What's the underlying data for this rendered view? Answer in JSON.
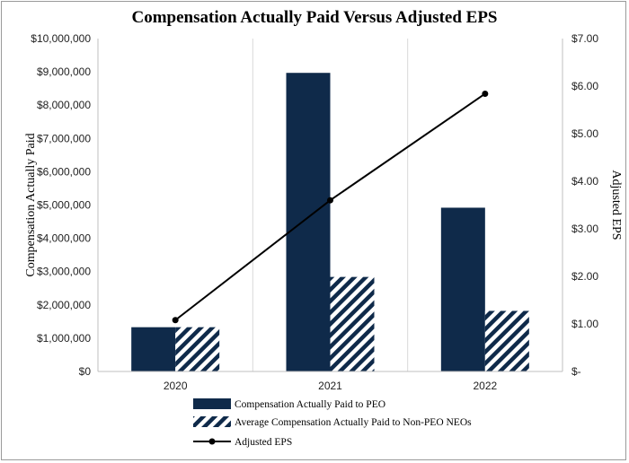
{
  "chart_data": {
    "type": "bar",
    "title": "Compensation Actually Paid Versus Adjusted EPS",
    "categories": [
      "2020",
      "2021",
      "2022"
    ],
    "series": [
      {
        "name": "Compensation Actually Paid to PEO",
        "kind": "bar",
        "style": "solid",
        "color": "#0f2a4a",
        "values": [
          1330000,
          8970000,
          4920000
        ]
      },
      {
        "name": "Average Compensation Actually Paid to Non-PEO NEOs",
        "kind": "bar",
        "style": "hatched",
        "color": "#0f2a4a",
        "values": [
          1330000,
          2840000,
          1820000
        ]
      },
      {
        "name": "Adjusted EPS",
        "kind": "line",
        "axis": "right",
        "color": "#000000",
        "values": [
          1.08,
          3.6,
          5.84
        ]
      }
    ],
    "ylabel": "Compensation Actually Paid",
    "y2label": "Adjusted EPS",
    "ylim": [
      0,
      10000000
    ],
    "y2lim": [
      0,
      7
    ],
    "yticks": [
      "$0",
      "$1,000,000",
      "$2,000,000",
      "$3,000,000",
      "$4,000,000",
      "$5,000,000",
      "$6,000,000",
      "$7,000,000",
      "$8,000,000",
      "$9,000,000",
      "$10,000,000"
    ],
    "y2ticks": [
      "$-",
      "$1.00",
      "$2.00",
      "$3.00",
      "$4.00",
      "$5.00",
      "$6.00",
      "$7.00"
    ],
    "grid": "vertical",
    "legend_position": "bottom"
  }
}
